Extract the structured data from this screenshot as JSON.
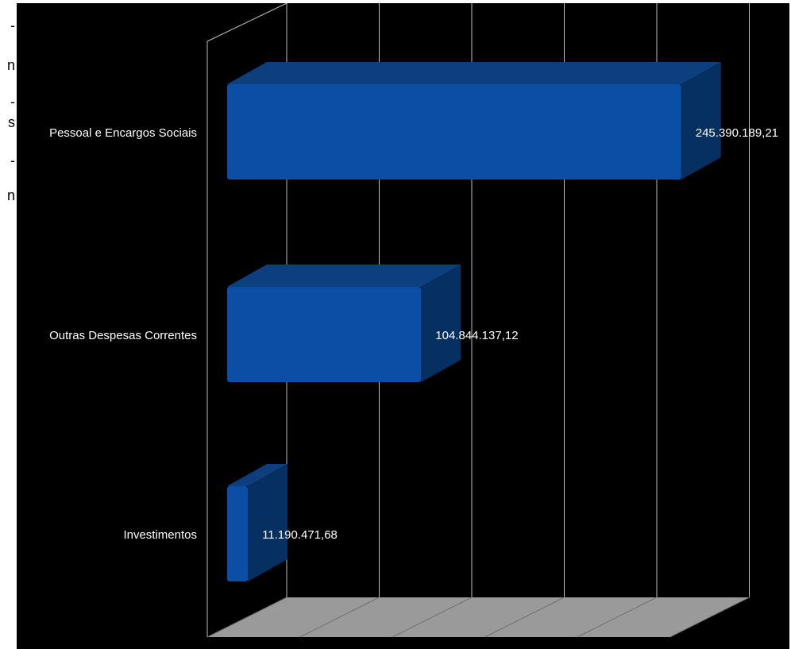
{
  "side_fragments": [
    "-",
    "n",
    "-",
    "s",
    "-",
    "n"
  ],
  "colors": {
    "background": "#000000",
    "bar_front": "#0a4ea5",
    "bar_top": "#0d3f7e",
    "bar_side": "#062f62",
    "grid": "#bdbdbd",
    "floor": "#9a9a9a",
    "label_text": "#ffffff"
  },
  "chart_data": {
    "type": "bar",
    "orientation": "horizontal",
    "three_d": true,
    "categories": [
      "Pessoal e Encargos Sociais",
      "Outras Despesas Correntes",
      "Investimentos"
    ],
    "values": [
      245390189.21,
      104844137.12,
      11190471.68
    ],
    "data_labels": [
      "245.390.189,21",
      "104.844.137,12",
      "11.190.471,68"
    ],
    "title": "",
    "xlabel": "",
    "ylabel": "",
    "xlim": [
      0,
      250000000
    ],
    "x_gridline_values": [
      0,
      50000000,
      100000000,
      150000000,
      200000000,
      250000000
    ],
    "grid": true,
    "legend": "none"
  }
}
